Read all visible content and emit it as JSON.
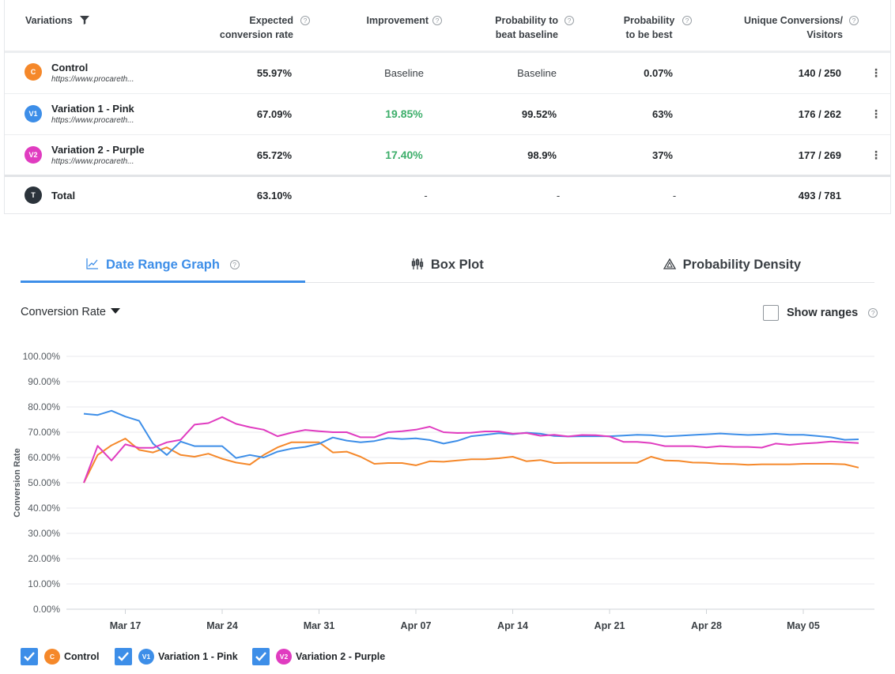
{
  "table": {
    "headers": {
      "variations": "Variations",
      "expected_1": "Expected",
      "expected_2": "conversion rate",
      "improvement": "Improvement",
      "prob_beat_1": "Probability to",
      "prob_beat_2": "beat baseline",
      "prob_best_1": "Probability",
      "prob_best_2": "to be best",
      "unique_1": "Unique Conversions/",
      "unique_2": "Visitors"
    },
    "rows": [
      {
        "badge": "C",
        "name": "Control",
        "url": "https://www.procareth...",
        "expected": "55.97%",
        "improvement": "Baseline",
        "prob_beat": "Baseline",
        "prob_best": "0.07%",
        "conversions": "140 / 250",
        "color": "#f5882a"
      },
      {
        "badge": "V1",
        "name": "Variation 1 - Pink",
        "url": "https://www.procareth...",
        "expected": "67.09%",
        "improvement": "19.85%",
        "prob_beat": "99.52%",
        "prob_best": "63%",
        "conversions": "176 / 262",
        "color": "#3d8ee8"
      },
      {
        "badge": "V2",
        "name": "Variation 2 - Purple",
        "url": "https://www.procareth...",
        "expected": "65.72%",
        "improvement": "17.40%",
        "prob_beat": "98.9%",
        "prob_best": "37%",
        "conversions": "177 / 269",
        "color": "#e03cc0"
      }
    ],
    "total": {
      "badge": "T",
      "name": "Total",
      "expected": "63.10%",
      "improvement": "-",
      "prob_beat": "-",
      "prob_best": "-",
      "conversions": "493 / 781",
      "color": "#2b333b"
    }
  },
  "tabs": [
    {
      "label": "Date Range Graph",
      "icon": "line-chart-icon",
      "active": true
    },
    {
      "label": "Box Plot",
      "icon": "box-plot-icon",
      "active": false
    },
    {
      "label": "Probability Density",
      "icon": "triangle-density-icon",
      "active": false
    }
  ],
  "controls": {
    "metric": "Conversion Rate",
    "show_ranges": "Show ranges",
    "show_ranges_checked": false
  },
  "chart_data": {
    "type": "line",
    "ylabel": "Conversion Rate",
    "xlabel": "",
    "ylim": [
      0,
      100
    ],
    "y_ticks": [
      "0.00%",
      "10.00%",
      "20.00%",
      "30.00%",
      "40.00%",
      "50.00%",
      "60.00%",
      "70.00%",
      "80.00%",
      "90.00%",
      "100.00%"
    ],
    "y_tick_values": [
      0,
      10,
      20,
      30,
      40,
      50,
      60,
      70,
      80,
      90,
      100
    ],
    "x_start": "Mar 13",
    "x_day_range": [
      0,
      57
    ],
    "x_ticks": [
      {
        "label": "Mar 17",
        "day": 3
      },
      {
        "label": "Mar 24",
        "day": 10
      },
      {
        "label": "Mar 31",
        "day": 17
      },
      {
        "label": "Apr 07",
        "day": 24
      },
      {
        "label": "Apr 14",
        "day": 31
      },
      {
        "label": "Apr 21",
        "day": 38
      },
      {
        "label": "Apr 28",
        "day": 45
      },
      {
        "label": "May 05",
        "day": 52
      }
    ],
    "series": [
      {
        "name": "Control",
        "color": "#f5882a",
        "days": [
          0,
          1,
          2,
          3,
          4,
          5,
          6,
          7,
          8,
          9,
          10,
          11,
          12,
          13,
          14,
          15,
          16,
          17,
          18,
          19,
          20,
          21,
          22,
          23,
          24,
          25,
          26,
          27,
          28,
          29,
          30,
          31,
          32,
          33,
          34,
          35,
          36,
          37,
          38,
          39,
          40,
          41,
          42,
          43,
          44,
          45,
          46,
          47,
          48,
          49,
          50,
          51,
          52,
          53,
          54,
          55,
          56
        ],
        "values": [
          50.0,
          61.0,
          64.8,
          67.5,
          63.0,
          62.0,
          64.0,
          61.0,
          60.3,
          61.5,
          59.5,
          58.0,
          57.2,
          61.0,
          64.0,
          66.0,
          66.0,
          66.0,
          62.0,
          62.3,
          60.3,
          57.5,
          57.8,
          57.8,
          56.9,
          58.5,
          58.3,
          58.8,
          59.3,
          59.3,
          59.7,
          60.3,
          58.5,
          59.0,
          57.8,
          57.9,
          57.9,
          57.9,
          57.9,
          57.9,
          57.9,
          60.3,
          58.8,
          58.7,
          58.0,
          57.9,
          57.5,
          57.4,
          57.1,
          57.3,
          57.3,
          57.3,
          57.5,
          57.5,
          57.5,
          57.3,
          56.0
        ]
      },
      {
        "name": "Variation 1 - Pink",
        "color": "#3d8ee8",
        "days": [
          0,
          1,
          2,
          3,
          4,
          5,
          6,
          7,
          8,
          9,
          10,
          11,
          12,
          13,
          14,
          15,
          16,
          17,
          18,
          19,
          20,
          21,
          22,
          23,
          24,
          25,
          26,
          27,
          28,
          29,
          30,
          31,
          32,
          33,
          34,
          35,
          36,
          37,
          38,
          39,
          40,
          41,
          42,
          43,
          44,
          45,
          46,
          47,
          48,
          49,
          50,
          51,
          52,
          53,
          54,
          55,
          56
        ],
        "values": [
          77.3,
          76.8,
          78.5,
          76.2,
          74.5,
          65.5,
          61.0,
          66.3,
          64.5,
          64.5,
          64.5,
          59.8,
          61.0,
          60.0,
          62.3,
          63.5,
          64.2,
          65.4,
          67.9,
          66.7,
          66.0,
          66.5,
          67.7,
          67.3,
          67.6,
          66.9,
          65.5,
          66.6,
          68.4,
          69.0,
          69.6,
          69.2,
          69.8,
          69.4,
          68.5,
          68.3,
          68.4,
          68.4,
          68.4,
          68.7,
          69.0,
          68.8,
          68.3,
          68.6,
          68.9,
          69.2,
          69.5,
          69.2,
          68.9,
          69.1,
          69.4,
          69.0,
          69.0,
          68.5,
          68.0,
          67.0,
          67.2
        ]
      },
      {
        "name": "Variation 2 - Purple",
        "color": "#e03cc0",
        "days": [
          0,
          1,
          2,
          3,
          4,
          5,
          6,
          7,
          8,
          9,
          10,
          11,
          12,
          13,
          14,
          15,
          16,
          17,
          18,
          19,
          20,
          21,
          22,
          23,
          24,
          25,
          26,
          27,
          28,
          29,
          30,
          31,
          32,
          33,
          34,
          35,
          36,
          37,
          38,
          39,
          40,
          41,
          42,
          43,
          44,
          45,
          46,
          47,
          48,
          49,
          50,
          51,
          52,
          53,
          54,
          55,
          56
        ],
        "values": [
          50.0,
          64.6,
          58.8,
          65.2,
          63.8,
          63.8,
          66.0,
          67.0,
          73.0,
          73.6,
          76.0,
          73.3,
          72.0,
          71.0,
          68.4,
          69.8,
          70.9,
          70.4,
          70.0,
          70.0,
          68.0,
          68.0,
          70.0,
          70.4,
          71.0,
          72.2,
          70.0,
          69.7,
          69.8,
          70.3,
          70.3,
          69.4,
          69.7,
          68.6,
          69.0,
          68.3,
          68.9,
          68.8,
          68.3,
          66.2,
          66.2,
          65.7,
          64.5,
          64.5,
          64.5,
          64.0,
          64.5,
          64.2,
          64.2,
          63.9,
          65.5,
          65.0,
          65.5,
          65.8,
          66.3,
          66.0,
          65.7
        ]
      }
    ]
  },
  "legend": [
    {
      "badge": "C",
      "label": "Control",
      "color": "#f5882a",
      "checked": true
    },
    {
      "badge": "V1",
      "label": "Variation 1 - Pink",
      "color": "#3d8ee8",
      "checked": true
    },
    {
      "badge": "V2",
      "label": "Variation 2 - Purple",
      "color": "#e03cc0",
      "checked": true
    }
  ]
}
